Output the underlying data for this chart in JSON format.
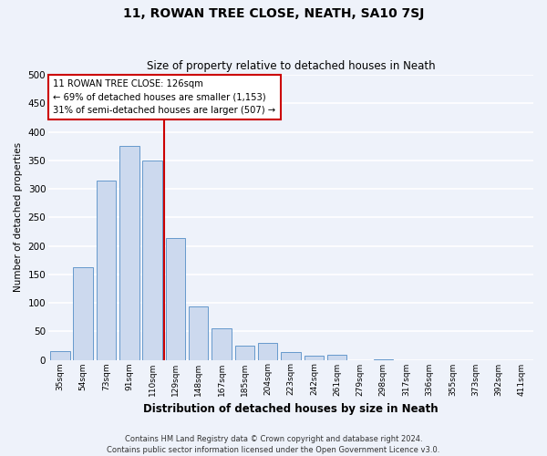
{
  "title": "11, ROWAN TREE CLOSE, NEATH, SA10 7SJ",
  "subtitle": "Size of property relative to detached houses in Neath",
  "xlabel": "Distribution of detached houses by size in Neath",
  "ylabel": "Number of detached properties",
  "categories": [
    "35sqm",
    "54sqm",
    "73sqm",
    "91sqm",
    "110sqm",
    "129sqm",
    "148sqm",
    "167sqm",
    "185sqm",
    "204sqm",
    "223sqm",
    "242sqm",
    "261sqm",
    "279sqm",
    "298sqm",
    "317sqm",
    "336sqm",
    "355sqm",
    "373sqm",
    "392sqm",
    "411sqm"
  ],
  "values": [
    16,
    163,
    314,
    376,
    349,
    214,
    93,
    56,
    25,
    29,
    14,
    7,
    9,
    0,
    1,
    0,
    0,
    0,
    0,
    0,
    0
  ],
  "bar_color": "#ccd9ee",
  "bar_edge_color": "#6699cc",
  "vline_x_index": 5,
  "vline_color": "#cc0000",
  "annotation_lines": [
    "11 ROWAN TREE CLOSE: 126sqm",
    "← 69% of detached houses are smaller (1,153)",
    "31% of semi-detached houses are larger (507) →"
  ],
  "annotation_box_color": "white",
  "annotation_box_edge": "#cc0000",
  "ylim": [
    0,
    500
  ],
  "yticks": [
    0,
    50,
    100,
    150,
    200,
    250,
    300,
    350,
    400,
    450,
    500
  ],
  "footer_line1": "Contains HM Land Registry data © Crown copyright and database right 2024.",
  "footer_line2": "Contains public sector information licensed under the Open Government Licence v3.0.",
  "background_color": "#eef2fa",
  "grid_color": "white"
}
